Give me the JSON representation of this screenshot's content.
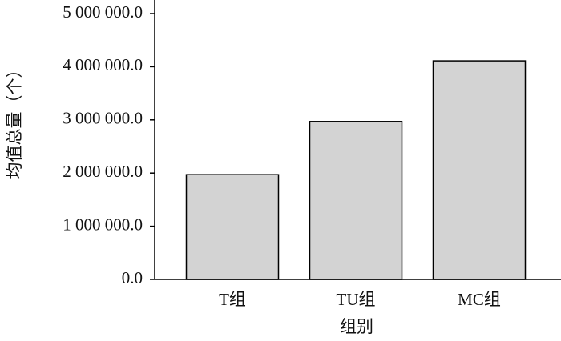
{
  "chart_data": {
    "type": "bar",
    "x_label": "组别",
    "y_label": "均值总量（个）",
    "categories": [
      "T组",
      "TU组",
      "MC组"
    ],
    "values": [
      1970000,
      2970000,
      4110000
    ],
    "color": "#d3d3d3",
    "ylim": [
      0,
      5000000
    ],
    "yticks": [
      {
        "value": 0,
        "label": "0.0"
      },
      {
        "value": 1000000,
        "label": "1 000 000.0"
      },
      {
        "value": 2000000,
        "label": "2 000 000.0"
      },
      {
        "value": 3000000,
        "label": "3 000 000.0"
      },
      {
        "value": 4000000,
        "label": "4 000 000.0"
      },
      {
        "value": 5000000,
        "label": "5 000 000.0"
      }
    ],
    "grid": false
  }
}
